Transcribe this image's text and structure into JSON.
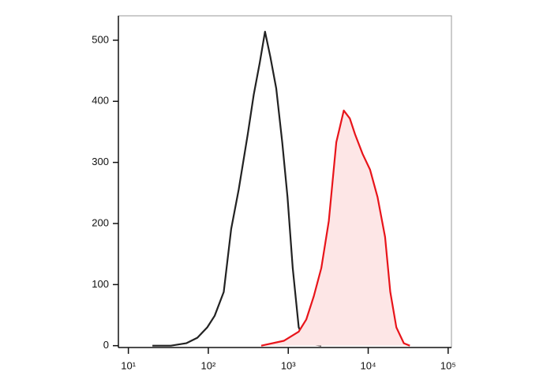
{
  "chart_data": {
    "type": "histogram-overlay",
    "xscale": "log",
    "xlim": [
      7.5,
      110000
    ],
    "ylim": [
      -3,
      540
    ],
    "xticks": [
      {
        "value": 10,
        "label": "10¹"
      },
      {
        "value": 100,
        "label": "10²"
      },
      {
        "value": 1000,
        "label": "10³"
      },
      {
        "value": 10000,
        "label": "10⁴"
      },
      {
        "value": 100000,
        "label": "10⁵"
      }
    ],
    "yticks": [
      0,
      100,
      200,
      300,
      400,
      500
    ],
    "series": [
      {
        "color": "#222222",
        "filled": false,
        "x": [
          20,
          34,
          53,
          73,
          97,
          120,
          156,
          193,
          240,
          311,
          370,
          440,
          512,
          596,
          708,
          841,
          979,
          1138,
          1353,
          1680,
          2590
        ],
        "values": [
          0,
          0,
          4,
          13,
          30,
          49,
          88,
          191,
          256,
          346,
          411,
          463,
          514,
          473,
          421,
          333,
          243,
          127,
          30,
          4,
          0
        ]
      },
      {
        "color": "#e8141a",
        "fill": "#fde6e6",
        "filled": true,
        "x": [
          459,
          879,
          1353,
          1680,
          2085,
          2590,
          3213,
          3990,
          4955,
          5890,
          6850,
          8510,
          10550,
          13100,
          16250,
          18900,
          22500,
          27900,
          33200
        ],
        "values": [
          0,
          8,
          23,
          43,
          81,
          127,
          204,
          333,
          385,
          372,
          346,
          314,
          288,
          243,
          178,
          88,
          30,
          4,
          0
        ]
      }
    ]
  }
}
